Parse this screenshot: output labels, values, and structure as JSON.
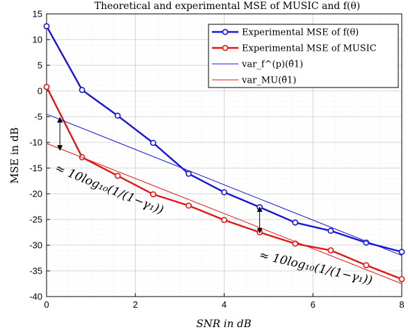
{
  "chart_data": {
    "type": "line",
    "title": "Theoretical and experimental MSE of MUSIC and f(θ)",
    "xlabel": "SNR in dB",
    "ylabel": "MSE in dB",
    "xlim": [
      0,
      8
    ],
    "ylim": [
      -40,
      15
    ],
    "x_ticks": [
      "0",
      "2",
      "4",
      "6",
      "8"
    ],
    "y_ticks": [
      "15",
      "10",
      "5",
      "0",
      "-5",
      "-10",
      "-15",
      "-20",
      "-25",
      "-30",
      "-35",
      "-40"
    ],
    "grid": true,
    "legend_position": "top-right",
    "series": [
      {
        "name": "Experimental MSE of f(θ)",
        "color": "#1414dc",
        "style": "line-marker",
        "x": [
          0,
          0.8,
          1.6,
          2.4,
          3.2,
          4.0,
          4.8,
          5.6,
          6.4,
          7.2,
          8.0
        ],
        "y": [
          12.6,
          0.2,
          -4.8,
          -10.1,
          -16.1,
          -19.7,
          -22.6,
          -25.6,
          -27.2,
          -29.5,
          -31.3
        ]
      },
      {
        "name": "Experimental MSE of MUSIC",
        "color": "#e61414",
        "style": "line-marker",
        "x": [
          0,
          0.8,
          1.6,
          2.4,
          3.2,
          4.0,
          4.8,
          5.6,
          6.4,
          7.2,
          8.0
        ],
        "y": [
          0.8,
          -12.9,
          -16.5,
          -20.1,
          -22.3,
          -25.1,
          -27.5,
          -29.7,
          -31.0,
          -33.9,
          -36.6
        ]
      },
      {
        "name": "var_f^(p)(θ̂1)",
        "color": "#1414dc",
        "style": "thin-line",
        "x": [
          0,
          8
        ],
        "y": [
          -4.5,
          -32.0
        ]
      },
      {
        "name": "var_MU(θ̂1)",
        "color": "#e61414",
        "style": "thin-line",
        "x": [
          0,
          8
        ],
        "y": [
          -10.2,
          -37.5
        ]
      }
    ],
    "annotations": [
      {
        "text": "≈ 10log₁₀(1/(1−γ₁))"
      },
      {
        "text": "≈ 10log₁₀(1/(1−γ₁))"
      }
    ]
  }
}
